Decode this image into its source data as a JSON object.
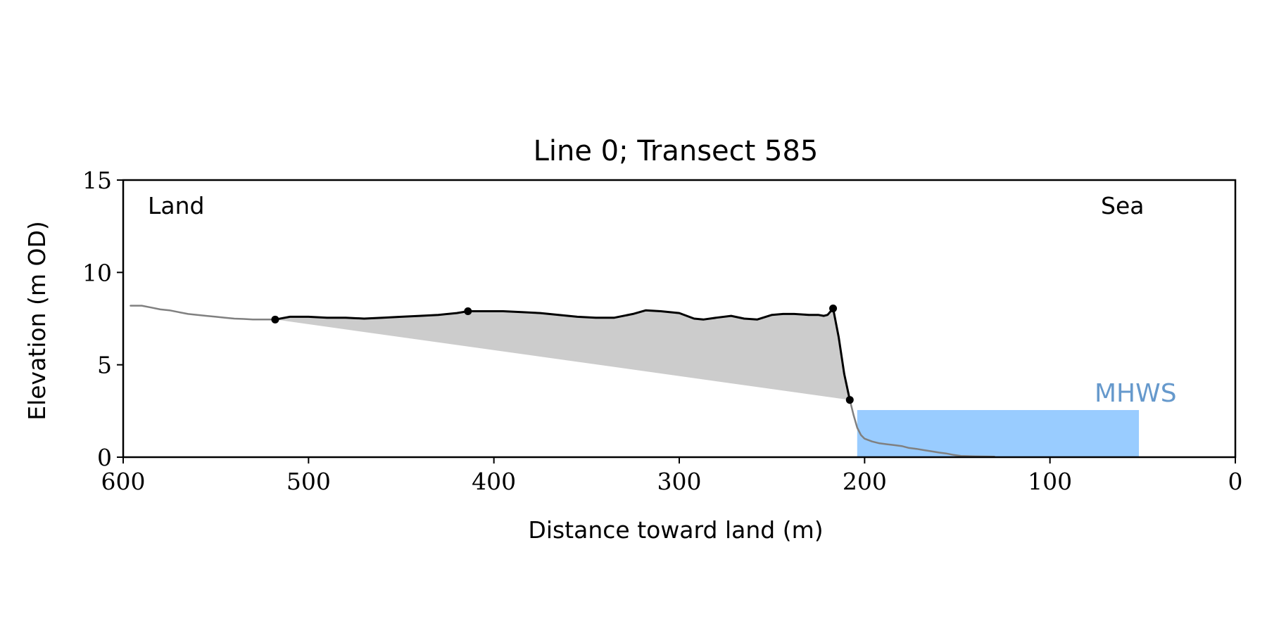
{
  "chart_data": {
    "type": "line",
    "title": "Line 0; Transect 585",
    "xlabel": "Distance toward land (m)",
    "ylabel": "Elevation (m OD)",
    "xlim": [
      600,
      0
    ],
    "ylim": [
      0,
      15
    ],
    "x_reversed": true,
    "xticks": [
      "600",
      "500",
      "400",
      "300",
      "200",
      "100",
      "0"
    ],
    "yticks": [
      "0",
      "5",
      "10",
      "15"
    ],
    "grid": false,
    "annotations": {
      "left": "Land",
      "right": "Sea",
      "mhws_label": "MHWS"
    },
    "mhws": {
      "elevation": 2.55,
      "x_start": 204,
      "x_end": 52
    },
    "series": [
      {
        "role": "full_profile",
        "color": "#808080",
        "x": [
          596,
          590,
          585,
          580,
          575,
          570,
          565,
          560,
          555,
          550,
          545,
          540,
          535,
          530,
          525,
          518
        ],
        "y": [
          8.2,
          8.2,
          8.1,
          8.0,
          7.95,
          7.85,
          7.75,
          7.7,
          7.65,
          7.6,
          7.55,
          7.5,
          7.48,
          7.45,
          7.45,
          7.45
        ]
      },
      {
        "role": "cliff_profile",
        "color": "#000000",
        "x": [
          518,
          510,
          500,
          490,
          480,
          470,
          460,
          450,
          440,
          430,
          420,
          414,
          405,
          395,
          385,
          375,
          365,
          355,
          345,
          335,
          325,
          318,
          310,
          300,
          292,
          287,
          280,
          272,
          265,
          258,
          250,
          244,
          238,
          230,
          225,
          222,
          220,
          217,
          214,
          211,
          208
        ],
        "y": [
          7.45,
          7.6,
          7.6,
          7.55,
          7.55,
          7.5,
          7.55,
          7.6,
          7.65,
          7.7,
          7.8,
          7.9,
          7.9,
          7.9,
          7.85,
          7.8,
          7.7,
          7.6,
          7.55,
          7.55,
          7.75,
          7.95,
          7.9,
          7.8,
          7.5,
          7.45,
          7.55,
          7.65,
          7.5,
          7.45,
          7.7,
          7.75,
          7.75,
          7.7,
          7.7,
          7.65,
          7.7,
          8.05,
          6.5,
          4.5,
          3.1
        ]
      },
      {
        "role": "beach_profile",
        "color": "#808080",
        "x": [
          208,
          206,
          204,
          202,
          200,
          196,
          192,
          188,
          184,
          180,
          176,
          172,
          168,
          164,
          160,
          156,
          152,
          148,
          140,
          130
        ],
        "y": [
          3.1,
          2.3,
          1.6,
          1.2,
          1.0,
          0.85,
          0.75,
          0.7,
          0.65,
          0.6,
          0.5,
          0.45,
          0.38,
          0.32,
          0.25,
          0.2,
          0.12,
          0.07,
          0.04,
          0.03
        ]
      }
    ],
    "shaded_region": {
      "color": "#cccccc",
      "base_line": {
        "x": [
          518,
          208
        ],
        "y": [
          7.45,
          3.1
        ]
      }
    },
    "markers": {
      "color": "#000000",
      "points": [
        {
          "x": 518,
          "y": 7.45
        },
        {
          "x": 414,
          "y": 7.9
        },
        {
          "x": 217,
          "y": 8.05
        },
        {
          "x": 208,
          "y": 3.1
        }
      ]
    },
    "colors": {
      "mhws_fill": "#99ccff",
      "mhws_label": "#6699cc",
      "axis": "#000000"
    }
  }
}
